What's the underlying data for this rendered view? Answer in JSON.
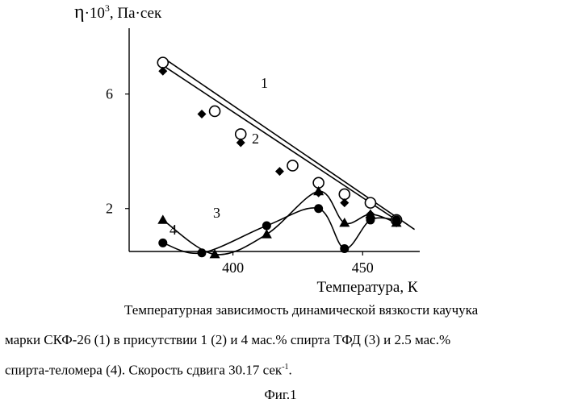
{
  "chart_data": {
    "type": "scatter",
    "ylabel_prefix": "η·10",
    "ylabel_exp": "3",
    "ylabel_suffix": ", Па·сек",
    "xlabel": "Температура, К",
    "xlim": [
      360,
      472
    ],
    "ylim": [
      0.5,
      8.3
    ],
    "x_ticks": [
      400,
      450
    ],
    "y_ticks": [
      2,
      6
    ],
    "series": [
      {
        "name": "1",
        "marker": "circle-open",
        "points": [
          [
            373,
            7.1
          ],
          [
            393,
            5.4
          ],
          [
            403,
            4.6
          ],
          [
            423,
            3.5
          ],
          [
            433,
            2.9
          ],
          [
            443,
            2.5
          ],
          [
            453,
            2.2
          ],
          [
            463,
            1.6
          ]
        ],
        "fit": "line",
        "fit_x": [
          375,
          470
        ],
        "fit_y": [
          7.15,
          1.27
        ]
      },
      {
        "name": "2",
        "marker": "diamond-filled",
        "points": [
          [
            373,
            6.8
          ],
          [
            388,
            5.3
          ],
          [
            403,
            4.3
          ],
          [
            418,
            3.3
          ],
          [
            433,
            2.55
          ],
          [
            443,
            2.2
          ],
          [
            453,
            1.8
          ],
          [
            463,
            1.5
          ]
        ],
        "fit": "line",
        "fit_x": [
          373,
          463
        ],
        "fit_y": [
          7.0,
          1.6
        ]
      },
      {
        "name": "3",
        "marker": "triangle-filled",
        "points": [
          [
            373,
            1.6
          ],
          [
            393,
            0.4
          ],
          [
            413,
            1.1
          ],
          [
            433,
            2.6
          ],
          [
            443,
            1.5
          ],
          [
            453,
            1.8
          ],
          [
            463,
            1.5
          ]
        ],
        "fit": "smooth"
      },
      {
        "name": "4",
        "marker": "circle-filled",
        "points": [
          [
            373,
            0.8
          ],
          [
            388,
            0.45
          ],
          [
            413,
            1.4
          ],
          [
            433,
            2.0
          ],
          [
            443,
            0.6
          ],
          [
            453,
            1.6
          ],
          [
            463,
            1.6
          ]
        ],
        "fit": "smooth"
      }
    ]
  },
  "caption": {
    "line1": "Температурная зависимость динамической вязкости каучука",
    "line2": "марки СКФ-26 (1) в присутствии 1 (2) и 4 мас.% спирта ТФД (3) и 2.5 мас.%",
    "line3_main": "спирта-теломера (4). Скорость сдвига 30.17 сек",
    "line3_sup": "-1",
    "line3_end": ".",
    "figure": "Фиг.1"
  }
}
